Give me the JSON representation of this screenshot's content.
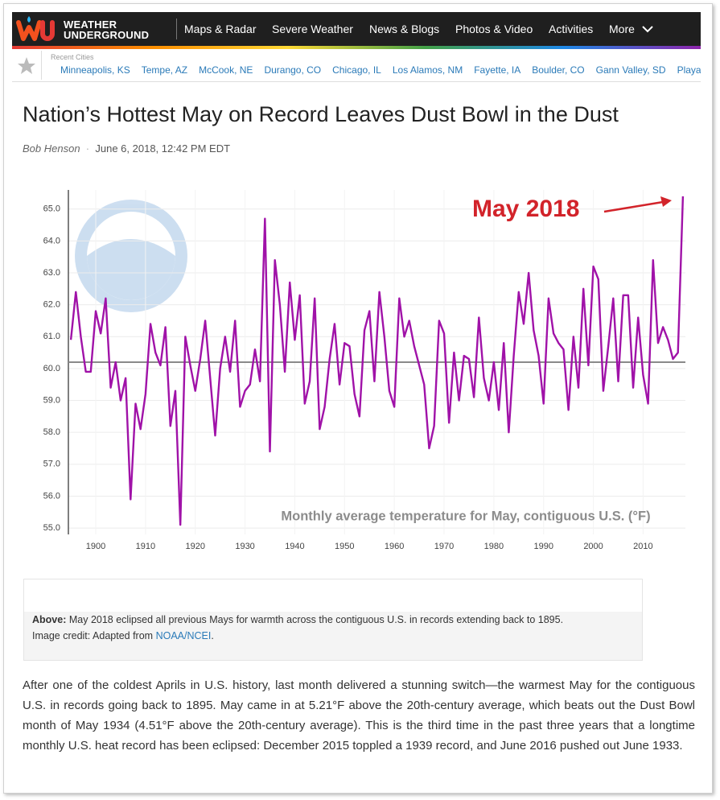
{
  "header": {
    "logo_line1": "WEATHER",
    "logo_line2": "UNDERGROUND",
    "nav": [
      "Maps & Radar",
      "Severe Weather",
      "News & Blogs",
      "Photos & Video",
      "Activities",
      "More"
    ]
  },
  "recent_cities": {
    "label": "Recent Cities",
    "cities": [
      "Minneapolis, KS",
      "Tempe, AZ",
      "McCook, NE",
      "Durango, CO",
      "Chicago, IL",
      "Los Alamos, NM",
      "Fayette, IA",
      "Boulder, CO",
      "Gann Valley, SD",
      "Playa"
    ]
  },
  "article": {
    "title": "Nation’s Hottest May on Record Leaves Dust Bowl in the Dust",
    "author": "Bob Henson",
    "date": "June 6, 2018, 12:42 PM EDT",
    "caption": {
      "lead": "Above:",
      "text": "May 2018 eclipsed all previous Mays for warmth across the contiguous U.S. in records extending back to 1895.",
      "credit_prefix": "Image credit: Adapted from",
      "credit_link": "NOAA/NCEI",
      "credit_suffix": "."
    },
    "body": "After one of the coldest Aprils in U.S. history, last month delivered a stunning switch—the warmest May for the contiguous U.S. in records going back to 1895. May came in at 5.21°F above the 20th-century average, which beats out the Dust Bowl month of May 1934 (4.51°F above the 20th-century average). This is the third time in the past three years that a longtime monthly U.S. heat record has been eclipsed: December 2015 toppled a 1939 record, and June 2016 pushed out June 1933."
  },
  "chart_data": {
    "type": "line",
    "subtitle": "Monthly average temperature for May, contiguous U.S. (°F)",
    "annotation": "May 2018",
    "color": "#a012a8",
    "reference_line": 60.2,
    "reference_color": "#8a8a8a",
    "grid": true,
    "x": [
      1895,
      1896,
      1897,
      1898,
      1899,
      1900,
      1901,
      1902,
      1903,
      1904,
      1905,
      1906,
      1907,
      1908,
      1909,
      1910,
      1911,
      1912,
      1913,
      1914,
      1915,
      1916,
      1917,
      1918,
      1919,
      1920,
      1921,
      1922,
      1923,
      1924,
      1925,
      1926,
      1927,
      1928,
      1929,
      1930,
      1931,
      1932,
      1933,
      1934,
      1935,
      1936,
      1937,
      1938,
      1939,
      1940,
      1941,
      1942,
      1943,
      1944,
      1945,
      1946,
      1947,
      1948,
      1949,
      1950,
      1951,
      1952,
      1953,
      1954,
      1955,
      1956,
      1957,
      1958,
      1959,
      1960,
      1961,
      1962,
      1963,
      1964,
      1965,
      1966,
      1967,
      1968,
      1969,
      1970,
      1971,
      1972,
      1973,
      1974,
      1975,
      1976,
      1977,
      1978,
      1979,
      1980,
      1981,
      1982,
      1983,
      1984,
      1985,
      1986,
      1987,
      1988,
      1989,
      1990,
      1991,
      1992,
      1993,
      1994,
      1995,
      1996,
      1997,
      1998,
      1999,
      2000,
      2001,
      2002,
      2003,
      2004,
      2005,
      2006,
      2007,
      2008,
      2009,
      2010,
      2011,
      2012,
      2013,
      2014,
      2015,
      2016,
      2017,
      2018
    ],
    "values": [
      60.9,
      62.4,
      61.0,
      59.9,
      59.9,
      61.8,
      61.1,
      62.2,
      59.4,
      60.2,
      59.0,
      59.7,
      55.9,
      58.9,
      58.1,
      59.2,
      61.4,
      60.5,
      60.1,
      61.3,
      58.2,
      59.3,
      55.1,
      61.0,
      60.1,
      59.3,
      60.3,
      61.5,
      59.7,
      57.9,
      60.0,
      61.0,
      59.9,
      61.5,
      58.8,
      59.3,
      59.5,
      60.6,
      59.6,
      64.7,
      57.4,
      63.4,
      62.0,
      59.9,
      62.7,
      60.9,
      62.3,
      58.9,
      59.6,
      62.2,
      58.1,
      58.8,
      60.3,
      61.4,
      59.5,
      60.8,
      60.7,
      59.2,
      58.5,
      61.2,
      61.8,
      59.6,
      62.4,
      61.0,
      59.3,
      58.8,
      62.2,
      61.0,
      61.5,
      60.7,
      60.1,
      59.5,
      57.5,
      58.2,
      61.5,
      61.1,
      58.3,
      60.5,
      59.0,
      60.4,
      60.3,
      59.1,
      61.6,
      59.7,
      59.0,
      60.2,
      58.7,
      60.8,
      58.0,
      60.4,
      62.4,
      61.4,
      63.0,
      61.2,
      60.4,
      58.9,
      62.2,
      61.1,
      60.8,
      60.6,
      58.7,
      61.0,
      59.4,
      62.5,
      60.1,
      63.2,
      62.8,
      59.3,
      60.7,
      62.2,
      59.6,
      62.3,
      62.3,
      59.4,
      61.6,
      59.8,
      58.9,
      63.4,
      60.8,
      61.3,
      60.9,
      60.3,
      60.5,
      65.4
    ],
    "xlim": [
      1894.5,
      2018.5
    ],
    "xticks": [
      1900,
      1910,
      1920,
      1930,
      1940,
      1950,
      1960,
      1970,
      1980,
      1990,
      2000,
      2010
    ],
    "ylim": [
      54.8,
      65.6
    ],
    "yticks": [
      {
        "value": 55,
        "label": "55.0"
      },
      {
        "value": 56,
        "label": "56.0"
      },
      {
        "value": 57,
        "label": "57.0"
      },
      {
        "value": 58,
        "label": "58.0"
      },
      {
        "value": 59,
        "label": "59.0"
      },
      {
        "value": 60,
        "label": "60.0"
      },
      {
        "value": 61,
        "label": "61.0"
      },
      {
        "value": 62,
        "label": "62.0"
      },
      {
        "value": 63,
        "label": "63.0"
      },
      {
        "value": 64,
        "label": "64.0"
      },
      {
        "value": 65,
        "label": "65.0"
      }
    ]
  }
}
